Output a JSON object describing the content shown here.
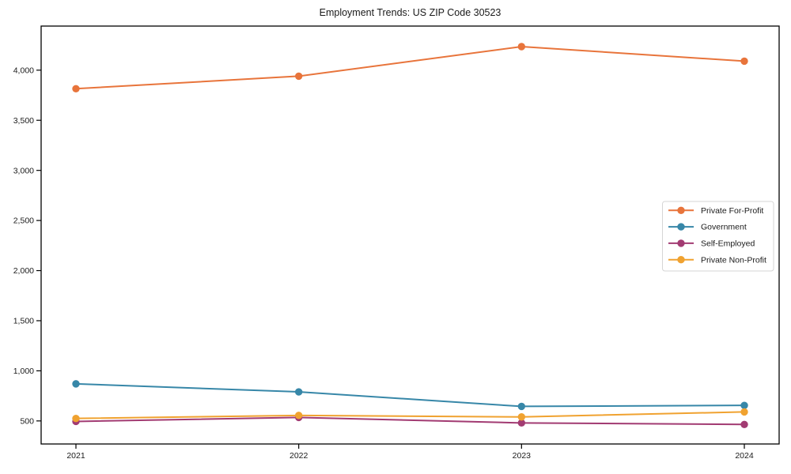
{
  "chart_data": {
    "type": "line",
    "title": "Employment Trends: US ZIP Code 30523",
    "categories": [
      "2021",
      "2022",
      "2023",
      "2024"
    ],
    "series": [
      {
        "name": "Private For-Profit",
        "color": "#E8743B",
        "values": [
          3815,
          3940,
          4235,
          4090
        ]
      },
      {
        "name": "Government",
        "color": "#3787A8",
        "values": [
          870,
          790,
          645,
          655
        ]
      },
      {
        "name": "Self-Employed",
        "color": "#A23B72",
        "values": [
          495,
          535,
          480,
          465
        ]
      },
      {
        "name": "Private Non-Profit",
        "color": "#F0A230",
        "values": [
          525,
          555,
          540,
          590
        ]
      }
    ],
    "yticks": [
      500,
      1000,
      1500,
      2000,
      2500,
      3000,
      3500,
      4000
    ],
    "ytick_labels": [
      "500",
      "1,000",
      "1,500",
      "2,000",
      "2,500",
      "3,000",
      "3,500",
      "4,000"
    ],
    "ylim": [
      270,
      4440
    ],
    "xlabel": "",
    "ylabel": "",
    "grid": false,
    "legend_position": "center-right",
    "marker": "circle",
    "line_width": 2,
    "axis_color": "#000000",
    "legend_border_color": "#d5d5d5",
    "background_color": "#ffffff"
  }
}
